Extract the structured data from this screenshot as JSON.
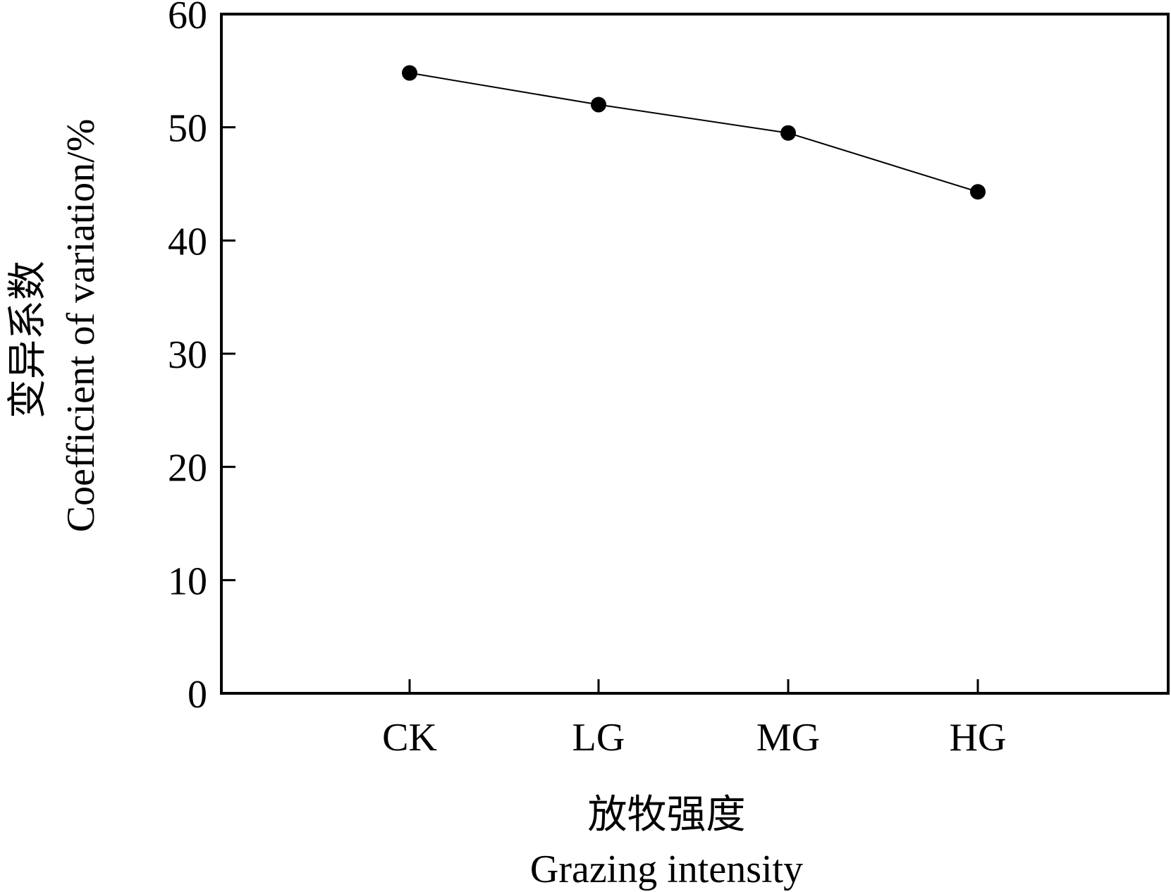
{
  "chart_data": {
    "type": "line",
    "title": "",
    "categories": [
      "CK",
      "LG",
      "MG",
      "HG"
    ],
    "series": [
      {
        "values": [
          54.8,
          52.0,
          49.5,
          44.3
        ]
      }
    ],
    "xlabel_zh": "放牧强度",
    "xlabel_en": "Grazing intensity",
    "ylabel_zh": "变异系数",
    "ylabel_en": "Coefficient of variation/%",
    "ylim": [
      0,
      60
    ],
    "yticks": [
      0,
      10,
      20,
      30,
      40,
      50,
      60
    ],
    "grid": false,
    "legend": "none",
    "colors": {
      "line": "#000000",
      "marker": "#000000",
      "axis": "#000000"
    }
  }
}
